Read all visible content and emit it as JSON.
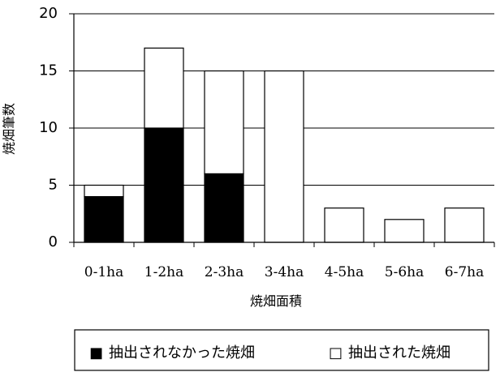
{
  "chart_data": {
    "type": "bar",
    "stacked": true,
    "categories": [
      "0-1ha",
      "1-2ha",
      "2-3ha",
      "3-4ha",
      "4-5ha",
      "5-6ha",
      "6-7ha"
    ],
    "series": [
      {
        "name": "抽出されなかった焼畑",
        "values": [
          4,
          10,
          6,
          0,
          0,
          0,
          0
        ],
        "color": "#000000"
      },
      {
        "name": "抽出された焼畑",
        "values": [
          1,
          7,
          9,
          15,
          3,
          2,
          3
        ],
        "color": "#ffffff"
      }
    ],
    "xlabel": "焼畑面積",
    "ylabel": "焼畑筆数",
    "ylim": [
      0,
      20
    ],
    "yticks": [
      "0",
      "5",
      "10",
      "15",
      "20"
    ],
    "grid": true,
    "legend_position": "bottom",
    "legend_markers": [
      "■",
      "□"
    ]
  }
}
